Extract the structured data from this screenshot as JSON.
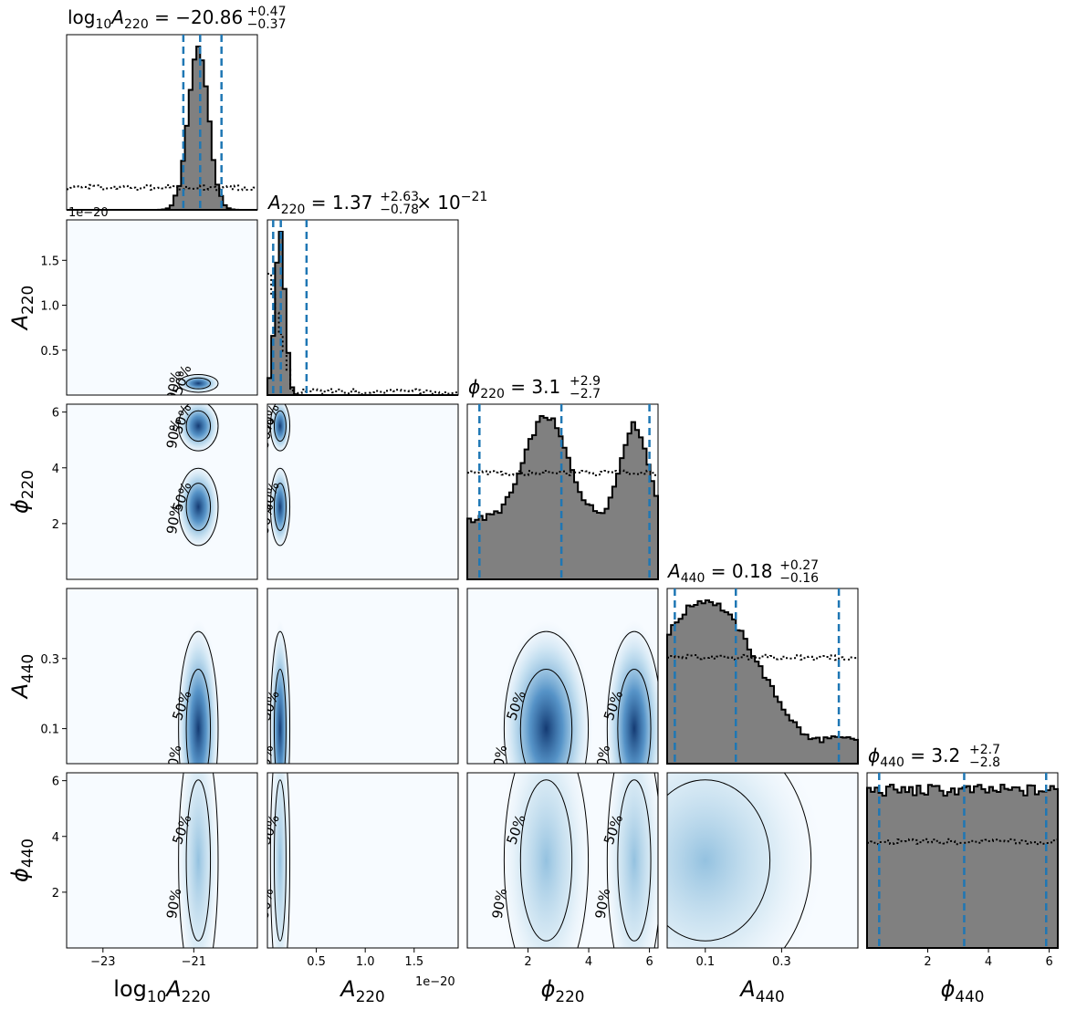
{
  "chart_data": {
    "type": "corner",
    "parameters": [
      "log10A220",
      "A220",
      "phi220",
      "A440",
      "phi440"
    ],
    "axis_labels": {
      "log10A220": "log10A220",
      "A220": "A220",
      "phi220": "ϕ220",
      "A440": "A440",
      "phi440": "ϕ440"
    },
    "titles": [
      {
        "param": "log10A220",
        "text": "log10A220 = −20.86",
        "plus": "+0.47",
        "minus": "−0.37",
        "suffix": ""
      },
      {
        "param": "A220",
        "text": "A220 = 1.37",
        "plus": "+2.63",
        "minus": "−0.78",
        "suffix": "× 10−21"
      },
      {
        "param": "phi220",
        "text": "ϕ220 = 3.1",
        "plus": "+2.9",
        "minus": "−2.7",
        "suffix": ""
      },
      {
        "param": "A440",
        "text": "A440 = 0.18",
        "plus": "+0.27",
        "minus": "−0.16",
        "suffix": ""
      },
      {
        "param": "phi440",
        "text": "ϕ440 = 3.2",
        "plus": "+2.7",
        "minus": "−2.8",
        "suffix": ""
      }
    ],
    "ranges": {
      "log10A220": [
        -23.8,
        -19.6
      ],
      "A220": [
        0.0,
        1.95e-20
      ],
      "phi220": [
        0.0,
        6.283
      ],
      "A440": [
        0.0,
        0.5
      ],
      "phi440": [
        0.0,
        6.283
      ]
    },
    "ticks": {
      "log10A220": [
        {
          "v": -23,
          "label": "−23"
        },
        {
          "v": -21,
          "label": "−21"
        }
      ],
      "A220": [
        {
          "v": 5e-21,
          "label": "0.5"
        },
        {
          "v": 1e-20,
          "label": "1.0"
        },
        {
          "v": 1.5e-20,
          "label": "1.5"
        }
      ],
      "phi220": [
        {
          "v": 2,
          "label": "2"
        },
        {
          "v": 4,
          "label": "4"
        },
        {
          "v": 6,
          "label": "6"
        }
      ],
      "A440": [
        {
          "v": 0.1,
          "label": "0.1"
        },
        {
          "v": 0.3,
          "label": "0.3"
        }
      ],
      "phi440": [
        {
          "v": 2,
          "label": "2"
        },
        {
          "v": 4,
          "label": "4"
        },
        {
          "v": 6,
          "label": "6"
        }
      ]
    },
    "offset_text": "1e−20",
    "quantiles": {
      "log10A220": [
        -21.23,
        -20.86,
        -20.39
      ],
      "A220": [
        5.9e-22,
        1.37e-21,
        4e-21
      ],
      "phi220": [
        0.4,
        3.1,
        6.0
      ],
      "A440": [
        0.02,
        0.18,
        0.45
      ],
      "phi440": [
        0.4,
        3.2,
        5.9
      ]
    },
    "posterior_peaks": {
      "log10A220": [
        {
          "mu": -20.9,
          "sigma": 0.22,
          "w": 1.0
        }
      ],
      "A220": [
        {
          "mu": 1.3e-21,
          "sigma": 5e-22,
          "w": 1.0
        }
      ],
      "phi220": [
        {
          "mu": 2.6,
          "sigma": 0.7,
          "w": 0.6
        },
        {
          "mu": 5.5,
          "sigma": 0.45,
          "w": 0.55
        }
      ],
      "A440": [
        {
          "mu": 0.1,
          "sigma": 0.14,
          "w": 1.0
        }
      ],
      "phi440": []
    },
    "contour_levels": [
      "50%",
      "90%"
    ],
    "histogram_style": {
      "fill": "#808080",
      "stroke": "#000000",
      "prior_line": "dotted",
      "quantile_color": "#1f77b4"
    },
    "density_colormap": "Blues"
  }
}
